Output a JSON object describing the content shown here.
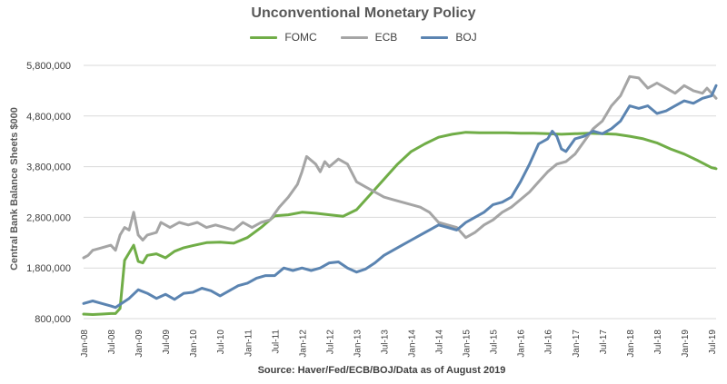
{
  "chart_data": {
    "type": "line",
    "title": "Unconventional Monetary Policy",
    "ylabel": "Central Bank Balance Sheets $000",
    "source": "Source: Haver/Fed/ECB/BOJ/Data as of August 2019",
    "ylim": [
      800000,
      5800000
    ],
    "yticks": [
      800000,
      1800000,
      2800000,
      3800000,
      4800000,
      5800000
    ],
    "ytick_labels": [
      "800,000",
      "1,800,000",
      "2,800,000",
      "3,800,000",
      "4,800,000",
      "5,800,000"
    ],
    "xlim": [
      "2008-01",
      "2019-08"
    ],
    "xtick_labels": [
      "Jan-08",
      "Jul-08",
      "Jan-09",
      "Jul-09",
      "Jan-10",
      "Jul-10",
      "Jan-11",
      "Jul-11",
      "Jan-12",
      "Jul-12",
      "Jan-13",
      "Jul-13",
      "Jan-14",
      "Jul-14",
      "Jan-15",
      "Jul-15",
      "Jan-16",
      "Jul-16",
      "Jan-17",
      "Jul-17",
      "Jan-18",
      "Jul-18",
      "Jan-19",
      "Jul-19"
    ],
    "legend_position": "top",
    "grid": "horizontal",
    "series": [
      {
        "name": "FOMC",
        "color": "#70ad47",
        "points": [
          [
            "2008-01",
            890000
          ],
          [
            "2008-03",
            880000
          ],
          [
            "2008-05",
            890000
          ],
          [
            "2008-07",
            900000
          ],
          [
            "2008-08",
            900000
          ],
          [
            "2008-09",
            1000000
          ],
          [
            "2008-10",
            1950000
          ],
          [
            "2008-11",
            2100000
          ],
          [
            "2008-12",
            2250000
          ],
          [
            "2009-01",
            1930000
          ],
          [
            "2009-02",
            1900000
          ],
          [
            "2009-03",
            2050000
          ],
          [
            "2009-05",
            2080000
          ],
          [
            "2009-07",
            2000000
          ],
          [
            "2009-09",
            2130000
          ],
          [
            "2009-11",
            2200000
          ],
          [
            "2010-01",
            2240000
          ],
          [
            "2010-04",
            2300000
          ],
          [
            "2010-07",
            2310000
          ],
          [
            "2010-10",
            2290000
          ],
          [
            "2011-01",
            2400000
          ],
          [
            "2011-04",
            2600000
          ],
          [
            "2011-07",
            2830000
          ],
          [
            "2011-10",
            2850000
          ],
          [
            "2012-01",
            2900000
          ],
          [
            "2012-04",
            2880000
          ],
          [
            "2012-07",
            2850000
          ],
          [
            "2012-10",
            2820000
          ],
          [
            "2013-01",
            2950000
          ],
          [
            "2013-04",
            3250000
          ],
          [
            "2013-07",
            3550000
          ],
          [
            "2013-10",
            3850000
          ],
          [
            "2014-01",
            4100000
          ],
          [
            "2014-04",
            4250000
          ],
          [
            "2014-07",
            4380000
          ],
          [
            "2014-10",
            4440000
          ],
          [
            "2015-01",
            4480000
          ],
          [
            "2015-04",
            4470000
          ],
          [
            "2015-07",
            4470000
          ],
          [
            "2015-10",
            4470000
          ],
          [
            "2016-01",
            4460000
          ],
          [
            "2016-04",
            4460000
          ],
          [
            "2016-07",
            4450000
          ],
          [
            "2016-10",
            4440000
          ],
          [
            "2017-01",
            4450000
          ],
          [
            "2017-04",
            4460000
          ],
          [
            "2017-07",
            4450000
          ],
          [
            "2017-10",
            4440000
          ],
          [
            "2018-01",
            4400000
          ],
          [
            "2018-04",
            4350000
          ],
          [
            "2018-07",
            4270000
          ],
          [
            "2018-10",
            4150000
          ],
          [
            "2019-01",
            4050000
          ],
          [
            "2019-04",
            3920000
          ],
          [
            "2019-07",
            3780000
          ],
          [
            "2019-08",
            3760000
          ]
        ]
      },
      {
        "name": "ECB",
        "color": "#a5a5a5",
        "points": [
          [
            "2008-01",
            2000000
          ],
          [
            "2008-02",
            2050000
          ],
          [
            "2008-03",
            2150000
          ],
          [
            "2008-05",
            2200000
          ],
          [
            "2008-07",
            2250000
          ],
          [
            "2008-08",
            2150000
          ],
          [
            "2008-09",
            2450000
          ],
          [
            "2008-10",
            2600000
          ],
          [
            "2008-11",
            2550000
          ],
          [
            "2008-12",
            2900000
          ],
          [
            "2009-01",
            2450000
          ],
          [
            "2009-02",
            2350000
          ],
          [
            "2009-03",
            2450000
          ],
          [
            "2009-05",
            2500000
          ],
          [
            "2009-06",
            2700000
          ],
          [
            "2009-08",
            2600000
          ],
          [
            "2009-10",
            2700000
          ],
          [
            "2009-12",
            2650000
          ],
          [
            "2010-02",
            2700000
          ],
          [
            "2010-04",
            2600000
          ],
          [
            "2010-06",
            2650000
          ],
          [
            "2010-08",
            2600000
          ],
          [
            "2010-10",
            2550000
          ],
          [
            "2010-12",
            2700000
          ],
          [
            "2011-02",
            2600000
          ],
          [
            "2011-04",
            2700000
          ],
          [
            "2011-06",
            2750000
          ],
          [
            "2011-08",
            3000000
          ],
          [
            "2011-10",
            3200000
          ],
          [
            "2011-12",
            3450000
          ],
          [
            "2012-01",
            3700000
          ],
          [
            "2012-02",
            4000000
          ],
          [
            "2012-04",
            3850000
          ],
          [
            "2012-05",
            3700000
          ],
          [
            "2012-06",
            3900000
          ],
          [
            "2012-07",
            3800000
          ],
          [
            "2012-09",
            3950000
          ],
          [
            "2012-11",
            3850000
          ],
          [
            "2013-01",
            3500000
          ],
          [
            "2013-03",
            3400000
          ],
          [
            "2013-05",
            3300000
          ],
          [
            "2013-07",
            3200000
          ],
          [
            "2013-09",
            3150000
          ],
          [
            "2013-11",
            3100000
          ],
          [
            "2014-01",
            3050000
          ],
          [
            "2014-03",
            3000000
          ],
          [
            "2014-05",
            2900000
          ],
          [
            "2014-07",
            2700000
          ],
          [
            "2014-09",
            2650000
          ],
          [
            "2014-11",
            2600000
          ],
          [
            "2015-01",
            2400000
          ],
          [
            "2015-03",
            2500000
          ],
          [
            "2015-05",
            2650000
          ],
          [
            "2015-07",
            2750000
          ],
          [
            "2015-09",
            2900000
          ],
          [
            "2015-11",
            3000000
          ],
          [
            "2016-01",
            3150000
          ],
          [
            "2016-03",
            3300000
          ],
          [
            "2016-05",
            3500000
          ],
          [
            "2016-07",
            3700000
          ],
          [
            "2016-09",
            3850000
          ],
          [
            "2016-11",
            3900000
          ],
          [
            "2017-01",
            4050000
          ],
          [
            "2017-03",
            4300000
          ],
          [
            "2017-05",
            4550000
          ],
          [
            "2017-07",
            4700000
          ],
          [
            "2017-09",
            5000000
          ],
          [
            "2017-11",
            5200000
          ],
          [
            "2018-01",
            5580000
          ],
          [
            "2018-03",
            5550000
          ],
          [
            "2018-05",
            5350000
          ],
          [
            "2018-07",
            5450000
          ],
          [
            "2018-09",
            5350000
          ],
          [
            "2018-11",
            5250000
          ],
          [
            "2019-01",
            5400000
          ],
          [
            "2019-03",
            5300000
          ],
          [
            "2019-05",
            5250000
          ],
          [
            "2019-06",
            5350000
          ],
          [
            "2019-08",
            5150000
          ]
        ]
      },
      {
        "name": "BOJ",
        "color": "#5b84b1",
        "points": [
          [
            "2008-01",
            1100000
          ],
          [
            "2008-03",
            1150000
          ],
          [
            "2008-05",
            1100000
          ],
          [
            "2008-07",
            1050000
          ],
          [
            "2008-08",
            1020000
          ],
          [
            "2008-09",
            1080000
          ],
          [
            "2008-11",
            1200000
          ],
          [
            "2009-01",
            1370000
          ],
          [
            "2009-03",
            1300000
          ],
          [
            "2009-05",
            1200000
          ],
          [
            "2009-07",
            1280000
          ],
          [
            "2009-09",
            1180000
          ],
          [
            "2009-11",
            1300000
          ],
          [
            "2010-01",
            1320000
          ],
          [
            "2010-03",
            1400000
          ],
          [
            "2010-05",
            1350000
          ],
          [
            "2010-07",
            1250000
          ],
          [
            "2010-09",
            1350000
          ],
          [
            "2010-11",
            1450000
          ],
          [
            "2011-01",
            1500000
          ],
          [
            "2011-03",
            1600000
          ],
          [
            "2011-05",
            1650000
          ],
          [
            "2011-07",
            1650000
          ],
          [
            "2011-09",
            1800000
          ],
          [
            "2011-11",
            1750000
          ],
          [
            "2012-01",
            1800000
          ],
          [
            "2012-03",
            1750000
          ],
          [
            "2012-05",
            1800000
          ],
          [
            "2012-07",
            1900000
          ],
          [
            "2012-09",
            1920000
          ],
          [
            "2012-11",
            1800000
          ],
          [
            "2013-01",
            1720000
          ],
          [
            "2013-03",
            1780000
          ],
          [
            "2013-05",
            1900000
          ],
          [
            "2013-07",
            2050000
          ],
          [
            "2013-09",
            2150000
          ],
          [
            "2013-11",
            2250000
          ],
          [
            "2014-01",
            2350000
          ],
          [
            "2014-03",
            2450000
          ],
          [
            "2014-05",
            2550000
          ],
          [
            "2014-07",
            2650000
          ],
          [
            "2014-09",
            2600000
          ],
          [
            "2014-11",
            2550000
          ],
          [
            "2015-01",
            2700000
          ],
          [
            "2015-03",
            2800000
          ],
          [
            "2015-05",
            2900000
          ],
          [
            "2015-07",
            3050000
          ],
          [
            "2015-09",
            3100000
          ],
          [
            "2015-11",
            3200000
          ],
          [
            "2016-01",
            3500000
          ],
          [
            "2016-03",
            3850000
          ],
          [
            "2016-05",
            4250000
          ],
          [
            "2016-07",
            4350000
          ],
          [
            "2016-08",
            4500000
          ],
          [
            "2016-09",
            4400000
          ],
          [
            "2016-10",
            4150000
          ],
          [
            "2016-11",
            4100000
          ],
          [
            "2017-01",
            4350000
          ],
          [
            "2017-03",
            4400000
          ],
          [
            "2017-05",
            4500000
          ],
          [
            "2017-07",
            4450000
          ],
          [
            "2017-09",
            4550000
          ],
          [
            "2017-11",
            4700000
          ],
          [
            "2018-01",
            5000000
          ],
          [
            "2018-03",
            4950000
          ],
          [
            "2018-05",
            5000000
          ],
          [
            "2018-07",
            4850000
          ],
          [
            "2018-09",
            4900000
          ],
          [
            "2018-11",
            5000000
          ],
          [
            "2019-01",
            5100000
          ],
          [
            "2019-03",
            5050000
          ],
          [
            "2019-05",
            5150000
          ],
          [
            "2019-07",
            5200000
          ],
          [
            "2019-08",
            5400000
          ]
        ]
      }
    ]
  }
}
